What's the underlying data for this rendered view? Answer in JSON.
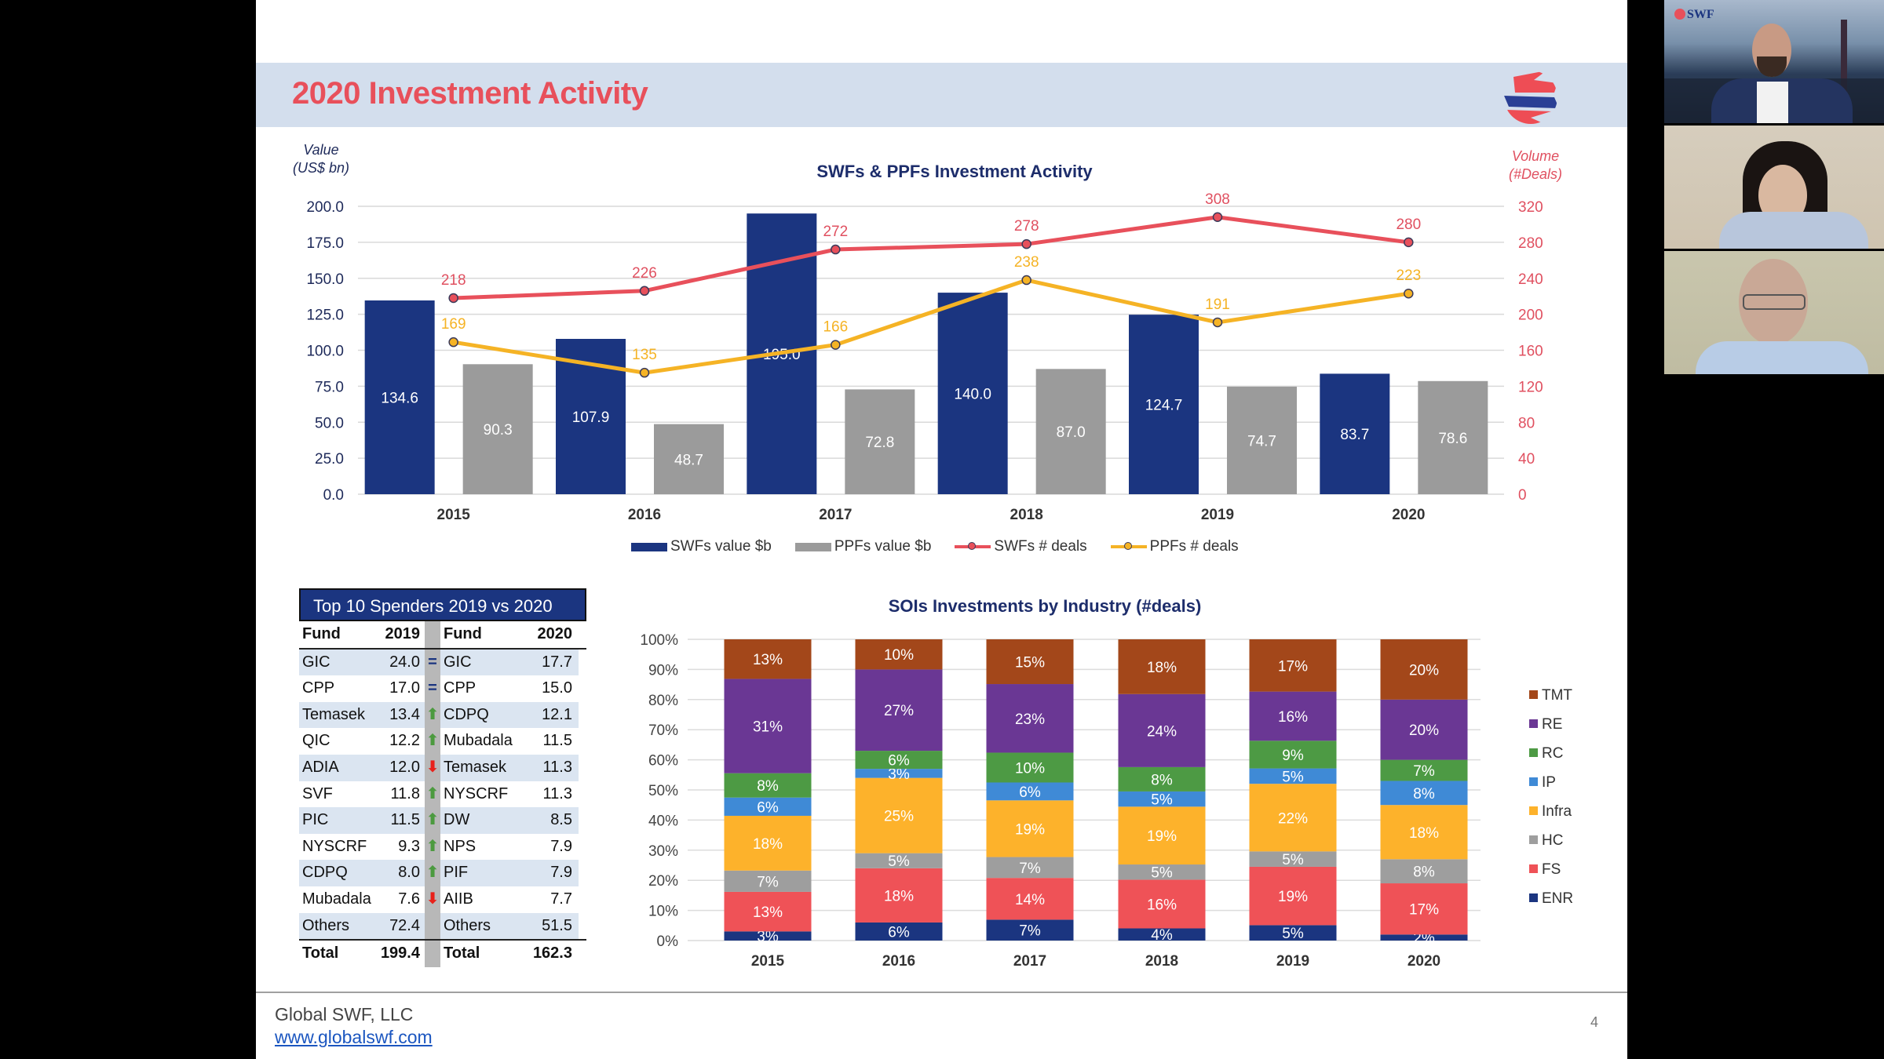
{
  "slide": {
    "title": "2020 Investment Activity",
    "brand_colors": {
      "red": "#e8505b",
      "navy": "#1b3580"
    },
    "footer": {
      "company": "Global SWF, LLC",
      "link": "www.globalswf.com",
      "page_number": "4"
    }
  },
  "chart_data": [
    {
      "type": "bar",
      "title": "SWFs & PPFs Investment Activity",
      "ylabel": "Value (US$ bn)",
      "ylabel_lines": [
        "Value",
        "(US$ bn)"
      ],
      "y2label": "Volume (#Deals)",
      "y2label_lines": [
        "Volume",
        "(#Deals)"
      ],
      "categories": [
        "2015",
        "2016",
        "2017",
        "2018",
        "2019",
        "2020"
      ],
      "ylim": [
        0,
        200
      ],
      "yticks": [
        "0.0",
        "25.0",
        "50.0",
        "75.0",
        "100.0",
        "125.0",
        "150.0",
        "175.0",
        "200.0"
      ],
      "y2lim": [
        0,
        320
      ],
      "y2ticks": [
        "0",
        "40",
        "80",
        "120",
        "160",
        "200",
        "240",
        "280",
        "320"
      ],
      "grid": true,
      "legend_position": "bottom",
      "series": [
        {
          "name": "SWFs value $b",
          "kind": "bar",
          "axis": "left",
          "color": "#1b3580",
          "values": [
            134.6,
            107.9,
            195.0,
            140.0,
            124.7,
            83.7
          ],
          "labels": [
            "134.6",
            "107.9",
            "195.0",
            "140.0",
            "124.7",
            "83.7"
          ]
        },
        {
          "name": "PPFs value $b",
          "kind": "bar",
          "axis": "left",
          "color": "#9b9b9b",
          "values": [
            90.3,
            48.7,
            72.8,
            87.0,
            74.7,
            78.6
          ],
          "labels": [
            "90.3",
            "48.7",
            "72.8",
            "87.0",
            "74.7",
            "78.6"
          ]
        },
        {
          "name": "SWFs # deals",
          "kind": "line",
          "axis": "right",
          "color": "#e8505b",
          "values": [
            218,
            226,
            272,
            278,
            308,
            280
          ],
          "labels": [
            "218",
            "226",
            "272",
            "278",
            "308",
            "280"
          ]
        },
        {
          "name": "PPFs # deals",
          "kind": "line",
          "axis": "right",
          "color": "#f5b325",
          "values": [
            169,
            135,
            166,
            238,
            191,
            223
          ],
          "labels": [
            "169",
            "135",
            "166",
            "238",
            "191",
            "223"
          ]
        }
      ]
    },
    {
      "type": "bar",
      "stacked": true,
      "percent": true,
      "title": "SOIs Investments by Industry (#deals)",
      "categories": [
        "2015",
        "2016",
        "2017",
        "2018",
        "2019",
        "2020"
      ],
      "ylim": [
        0,
        100
      ],
      "yticks": [
        "0%",
        "10%",
        "20%",
        "30%",
        "40%",
        "50%",
        "60%",
        "70%",
        "80%",
        "90%",
        "100%"
      ],
      "grid": true,
      "legend_position": "right",
      "series": [
        {
          "name": "ENR",
          "color": "#1b3580",
          "values": [
            3,
            6,
            7,
            4,
            5,
            2
          ]
        },
        {
          "name": "FS",
          "color": "#ef5257",
          "values": [
            13,
            18,
            14,
            16,
            19,
            17
          ]
        },
        {
          "name": "HC",
          "color": "#9e9e9e",
          "values": [
            7,
            5,
            7,
            5,
            5,
            8
          ]
        },
        {
          "name": "Infra",
          "color": "#fdb22b",
          "values": [
            18,
            25,
            19,
            19,
            22,
            18
          ]
        },
        {
          "name": "IP",
          "color": "#3f8ad6",
          "values": [
            6,
            3,
            6,
            5,
            5,
            8
          ]
        },
        {
          "name": "RC",
          "color": "#4d9a44",
          "values": [
            8,
            6,
            10,
            8,
            9,
            7
          ]
        },
        {
          "name": "RE",
          "color": "#6a3794",
          "values": [
            31,
            27,
            23,
            24,
            16,
            20
          ]
        },
        {
          "name": "TMT",
          "color": "#a3471a",
          "values": [
            13,
            10,
            15,
            18,
            17,
            20
          ]
        }
      ],
      "legend_order": [
        "TMT",
        "RE",
        "RC",
        "IP",
        "Infra",
        "HC",
        "FS",
        "ENR"
      ]
    }
  ],
  "table": {
    "title": "Top 10 Spenders 2019 vs 2020",
    "headers": [
      "Fund",
      "2019",
      "",
      "Fund",
      "2020"
    ],
    "rows": [
      {
        "fund2019": "GIC",
        "v2019": "24.0",
        "change": "equal",
        "fund2020": "GIC",
        "v2020": "17.7"
      },
      {
        "fund2019": "CPP",
        "v2019": "17.0",
        "change": "equal",
        "fund2020": "CPP",
        "v2020": "15.0"
      },
      {
        "fund2019": "Temasek",
        "v2019": "13.4",
        "change": "up",
        "fund2020": "CDPQ",
        "v2020": "12.1"
      },
      {
        "fund2019": "QIC",
        "v2019": "12.2",
        "change": "up",
        "fund2020": "Mubadala",
        "v2020": "11.5"
      },
      {
        "fund2019": "ADIA",
        "v2019": "12.0",
        "change": "down",
        "fund2020": "Temasek",
        "v2020": "11.3"
      },
      {
        "fund2019": "SVF",
        "v2019": "11.8",
        "change": "up",
        "fund2020": "NYSCRF",
        "v2020": "11.3"
      },
      {
        "fund2019": "PIC",
        "v2019": "11.5",
        "change": "up",
        "fund2020": "DW",
        "v2020": "8.5"
      },
      {
        "fund2019": "NYSCRF",
        "v2019": "9.3",
        "change": "up",
        "fund2020": "NPS",
        "v2020": "7.9"
      },
      {
        "fund2019": "CDPQ",
        "v2019": "8.0",
        "change": "up",
        "fund2020": "PIF",
        "v2020": "7.9"
      },
      {
        "fund2019": "Mubadala",
        "v2019": "7.6",
        "change": "down",
        "fund2020": "AIIB",
        "v2020": "7.7"
      },
      {
        "fund2019": "Others",
        "v2019": "72.4",
        "change": "",
        "fund2020": "Others",
        "v2020": "51.5"
      }
    ],
    "total": {
      "label2019": "Total",
      "v2019": "199.4",
      "label2020": "Total",
      "v2020": "162.3"
    },
    "change_icons": {
      "equal": "=",
      "up": "⬆",
      "down": "⬇"
    }
  },
  "video_call": {
    "participants": [
      {
        "name": "participant-1",
        "overlay_logo": "SWF"
      },
      {
        "name": "participant-2"
      },
      {
        "name": "participant-3"
      }
    ]
  }
}
